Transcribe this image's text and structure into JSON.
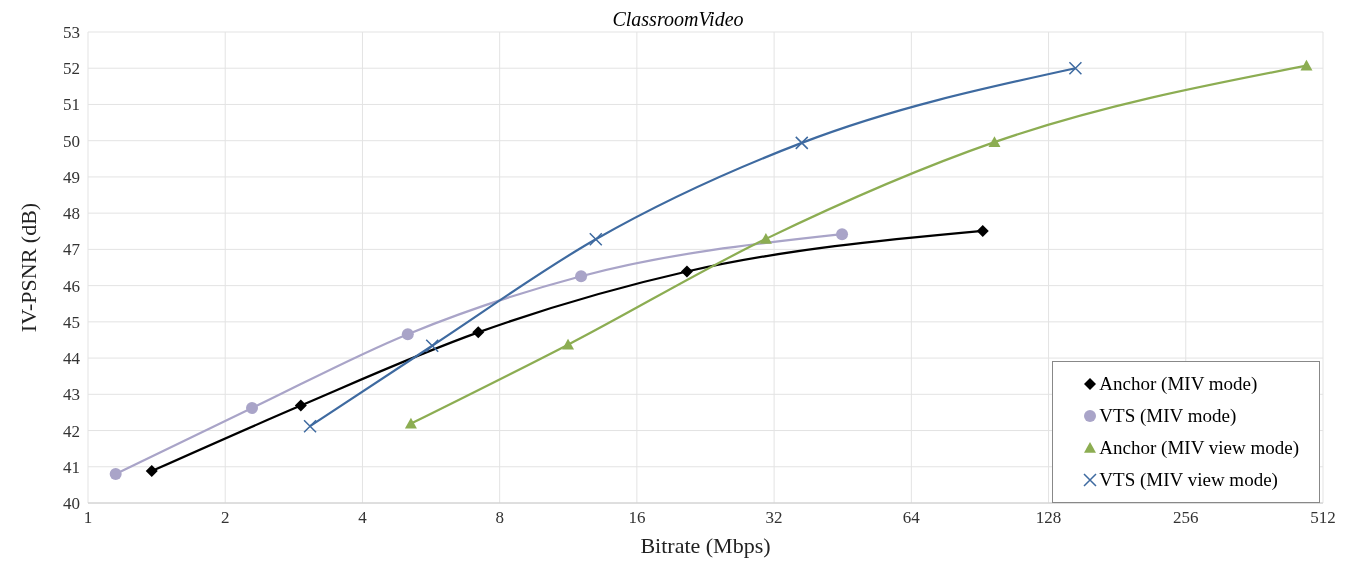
{
  "chart_data": {
    "type": "line",
    "title": "ClassroomVideo",
    "xlabel": "Bitrate (Mbps)",
    "ylabel": "IV-PSNR (dB)",
    "log": "x",
    "xlim": [
      1,
      512
    ],
    "xticks": [
      1,
      2,
      4,
      8,
      16,
      32,
      64,
      128,
      256,
      512
    ],
    "ylim": [
      40,
      53
    ],
    "yticks": [
      40,
      41,
      42,
      43,
      44,
      45,
      46,
      47,
      48,
      49,
      50,
      51,
      52,
      53
    ],
    "grid": true,
    "legend": "bottom right",
    "line_style": "solid",
    "series": [
      {
        "name": "Anchor (MIV mode)",
        "color": "#000000",
        "marker": "diamond",
        "x": [
          1.38,
          2.93,
          7.18,
          20.6,
          91.8
        ],
        "values": [
          40.88,
          42.69,
          44.71,
          46.39,
          47.51
        ]
      },
      {
        "name": "VTS (MIV mode)",
        "color": "#a9a4c8",
        "marker": "circle",
        "x": [
          1.15,
          2.29,
          5.03,
          12.07,
          45.1
        ],
        "values": [
          40.8,
          42.62,
          44.66,
          46.26,
          47.42
        ]
      },
      {
        "name": "Anchor (MIV view mode)",
        "color": "#8cad52",
        "marker": "triangle",
        "x": [
          5.11,
          11.3,
          30.7,
          97.4,
          471
        ],
        "values": [
          42.19,
          44.37,
          47.29,
          49.96,
          52.07
        ]
      },
      {
        "name": "VTS (MIV view mode)",
        "color": "#3e6aa0",
        "marker": "cross",
        "x": [
          3.07,
          5.69,
          13.0,
          36.8,
          146.6
        ],
        "values": [
          42.12,
          44.34,
          47.28,
          49.94,
          52.0
        ]
      }
    ]
  }
}
